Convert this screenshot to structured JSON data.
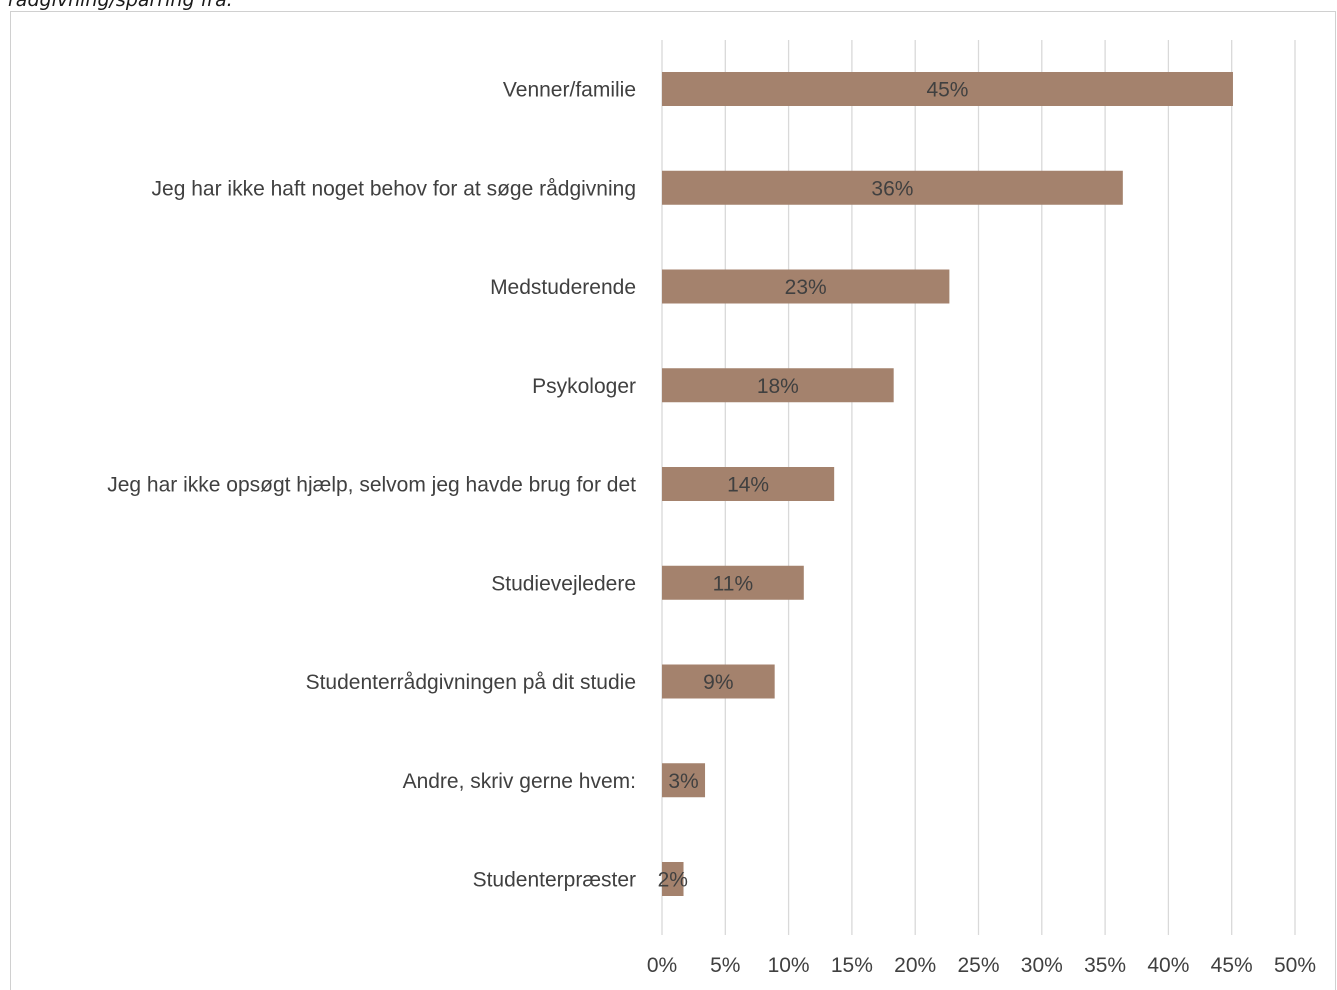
{
  "caption": "rådgivning/sparring fra:",
  "chart_data": {
    "type": "bar",
    "orientation": "horizontal",
    "title": "",
    "xlabel": "",
    "ylabel": "",
    "categories": [
      "Venner/familie",
      "Jeg har ikke haft noget behov for at søge rådgivning",
      "Medstuderende",
      "Psykologer",
      "Jeg har ikke opsøgt hjælp, selvom jeg havde brug for det",
      "Studievejledere",
      "Studenterrådgivningen på dit studie",
      "Andre, skriv gerne hvem:",
      "Studenterpræster"
    ],
    "values": [
      45.1,
      36.4,
      22.7,
      18.3,
      13.6,
      11.2,
      8.9,
      3.4,
      1.7
    ],
    "data_labels": [
      "45%",
      "36%",
      "23%",
      "18%",
      "14%",
      "11%",
      "9%",
      "3%",
      "2%"
    ],
    "xlim": [
      0,
      50
    ],
    "x_ticks": [
      "0%",
      "5%",
      "10%",
      "15%",
      "20%",
      "25%",
      "30%",
      "35%",
      "40%",
      "45%",
      "50%"
    ],
    "grid": true,
    "legend": "none",
    "bar_color": "#a4826d",
    "grid_color": "#d9d9d9",
    "text_color": "#404040"
  }
}
